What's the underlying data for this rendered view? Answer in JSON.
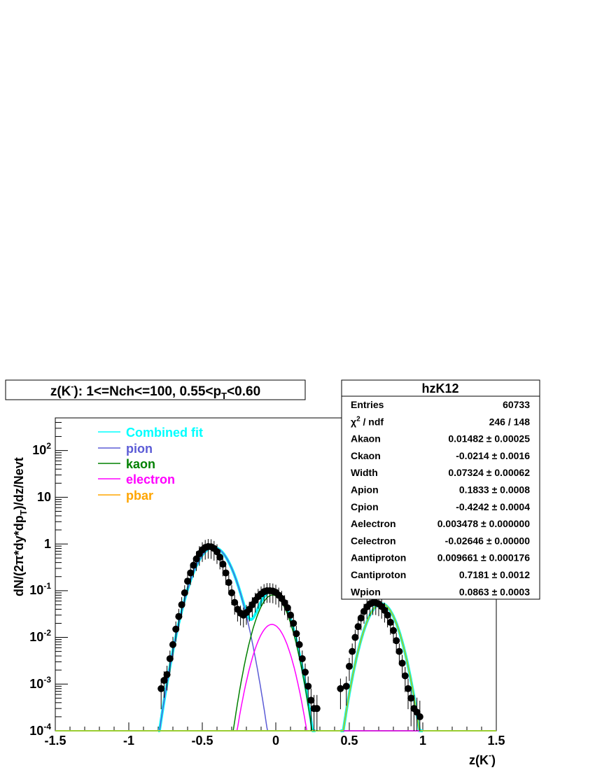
{
  "title": {
    "prefix": "z(K",
    "sup": "-",
    "mid": "): 1<=Nch<=100, 0.55<p",
    "sub": "T",
    "suffix": "<0.60"
  },
  "xlabel": {
    "main": "z(K",
    "sup": "-",
    "close": ")"
  },
  "ylabel": {
    "p1": "dN/(2",
    "pi": "π",
    "p2": "*dy*dp",
    "sub": "T",
    "p3": ")/dz/Nevt"
  },
  "legend": [
    {
      "label": "Combined fit",
      "color": "#00ffff"
    },
    {
      "label": "pion",
      "color": "#5b5bd6"
    },
    {
      "label": "kaon",
      "color": "#008000"
    },
    {
      "label": "electron",
      "color": "#ff00ff"
    },
    {
      "label": "pbar",
      "color": "#ffa500"
    }
  ],
  "stats": {
    "name": "hzK12",
    "rows": [
      {
        "key": "Entries",
        "value": "60733"
      },
      {
        "key": "chi2 / ndf",
        "value": "246 / 148"
      },
      {
        "key": "Akaon",
        "value": "0.01482 ± 0.00025"
      },
      {
        "key": "Ckaon",
        "value": "-0.0214 ± 0.0016"
      },
      {
        "key": "Width",
        "value": "0.07324 ± 0.00062"
      },
      {
        "key": "Apion",
        "value": "0.1833 ± 0.0008"
      },
      {
        "key": "Cpion",
        "value": "-0.4242 ± 0.0004"
      },
      {
        "key": "Aelectron",
        "value": "0.003478 ± 0.000000"
      },
      {
        "key": "Celectron",
        "value": "-0.02646 ± 0.00000"
      },
      {
        "key": "Aantiproton",
        "value": "0.009661 ± 0.000176"
      },
      {
        "key": "Cantiproton",
        "value": "0.7181 ± 0.0012"
      },
      {
        "key": "Wpion",
        "value": "0.0863 ± 0.0003"
      }
    ]
  },
  "chart_data": {
    "type": "scatter",
    "title": "z(K-): 1<=Nch<=100, 0.55<pT<0.60",
    "xlabel": "z(K-)",
    "ylabel": "dN/(2π*dy*dpT)/dz/Nevt",
    "xlim": [
      -1.5,
      1.5
    ],
    "ylim": [
      0.0001,
      500
    ],
    "yscale": "log",
    "x_ticks": [
      "-1.5",
      "-1",
      "-0.5",
      "0",
      "0.5",
      "1",
      "1.5"
    ],
    "y_ticks": [
      {
        "mant": "10",
        "exp": "-4"
      },
      {
        "mant": "10",
        "exp": "-3"
      },
      {
        "mant": "10",
        "exp": "-2"
      },
      {
        "mant": "10",
        "exp": "-1"
      },
      {
        "mant": "1",
        "exp": ""
      },
      {
        "mant": "10",
        "exp": ""
      },
      {
        "mant": "10",
        "exp": "2"
      }
    ],
    "fit_params": {
      "Akaon": 0.01482,
      "Ckaon": -0.0214,
      "Width": 0.07324,
      "Apion": 0.1833,
      "Cpion": -0.4242,
      "Wpion": 0.0863,
      "Aelectron": 0.003478,
      "Celectron": -0.02646,
      "Aantiproton": 0.009661,
      "Cantiproton": 0.7181
    },
    "series": [
      {
        "name": "data",
        "x": [
          -0.78,
          -0.76,
          -0.74,
          -0.72,
          -0.7,
          -0.68,
          -0.66,
          -0.64,
          -0.62,
          -0.6,
          -0.58,
          -0.56,
          -0.54,
          -0.52,
          -0.5,
          -0.48,
          -0.46,
          -0.44,
          -0.42,
          -0.4,
          -0.38,
          -0.36,
          -0.34,
          -0.32,
          -0.3,
          -0.28,
          -0.26,
          -0.24,
          -0.22,
          -0.2,
          -0.18,
          -0.16,
          -0.14,
          -0.12,
          -0.1,
          -0.08,
          -0.06,
          -0.04,
          -0.02,
          0.0,
          0.02,
          0.04,
          0.06,
          0.08,
          0.1,
          0.12,
          0.14,
          0.16,
          0.18,
          0.2,
          0.22,
          0.24,
          0.26,
          0.28,
          0.44,
          0.48,
          0.5,
          0.52,
          0.54,
          0.56,
          0.58,
          0.6,
          0.62,
          0.64,
          0.66,
          0.68,
          0.7,
          0.72,
          0.74,
          0.76,
          0.78,
          0.8,
          0.82,
          0.84,
          0.86,
          0.88,
          0.9,
          0.92,
          0.94,
          0.96,
          0.98
        ],
        "y": [
          0.0008,
          0.0012,
          0.0016,
          0.0035,
          0.007,
          0.015,
          0.028,
          0.05,
          0.09,
          0.16,
          0.24,
          0.35,
          0.48,
          0.62,
          0.75,
          0.84,
          0.88,
          0.87,
          0.8,
          0.68,
          0.52,
          0.37,
          0.24,
          0.15,
          0.09,
          0.056,
          0.04,
          0.033,
          0.03,
          0.034,
          0.04,
          0.05,
          0.062,
          0.075,
          0.085,
          0.095,
          0.1,
          0.1,
          0.098,
          0.092,
          0.08,
          0.068,
          0.055,
          0.043,
          0.03,
          0.02,
          0.012,
          0.007,
          0.0035,
          0.0018,
          0.0009,
          0.00045,
          0.0003,
          0.0003,
          0.0008,
          0.0009,
          0.0024,
          0.005,
          0.01,
          0.017,
          0.026,
          0.036,
          0.045,
          0.052,
          0.055,
          0.055,
          0.052,
          0.046,
          0.038,
          0.03,
          0.021,
          0.014,
          0.0085,
          0.005,
          0.0028,
          0.0015,
          0.0008,
          0.0005,
          0.0003,
          0.00025,
          0.0002
        ]
      }
    ]
  },
  "colors": {
    "data": "#000000",
    "combined": "#00ffff",
    "pion": "#5b5bd6",
    "kaon": "#008000",
    "electron": "#ff00ff",
    "pbar": "#ffa500",
    "antiproton_region": "#9acd32"
  }
}
